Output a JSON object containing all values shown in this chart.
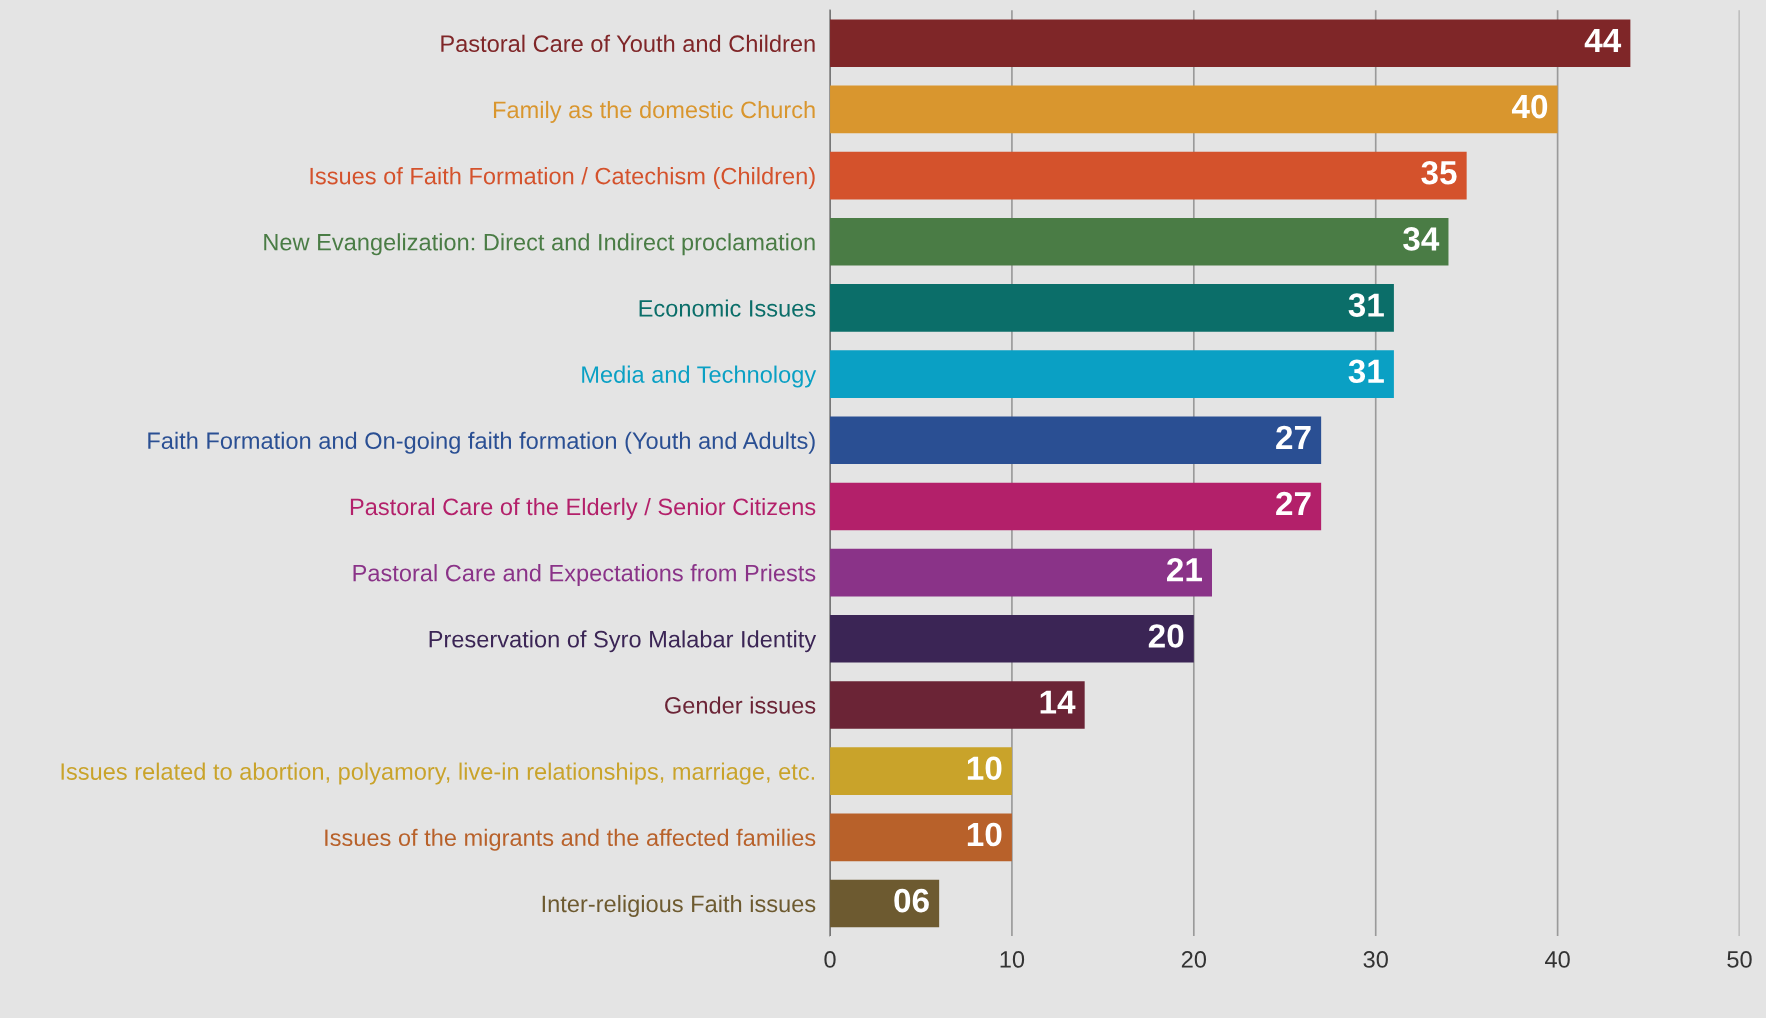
{
  "chart_data": {
    "type": "bar",
    "orientation": "horizontal",
    "categories": [
      "Pastoral Care of Youth and Children",
      "Family as the domestic Church",
      "Issues of Faith Formation / Catechism (Children)",
      "New Evangelization: Direct and Indirect proclamation",
      "Economic Issues",
      "Media and Technology",
      "Faith Formation and On-going faith formation (Youth and Adults)",
      "Pastoral Care of the Elderly / Senior Citizens",
      "Pastoral Care and Expectations from Priests",
      "Preservation of Syro Malabar Identity",
      "Gender issues",
      "Issues related to abortion, polyamory, live-in relationships, marriage, etc.",
      "Issues of the migrants and the affected families",
      "Inter-religious Faith issues"
    ],
    "values": [
      44,
      40,
      35,
      34,
      31,
      31,
      27,
      27,
      21,
      20,
      14,
      10,
      10,
      6
    ],
    "value_labels": [
      "44",
      "40",
      "35",
      "34",
      "31",
      "31",
      "27",
      "27",
      "21",
      "20",
      "14",
      "10",
      "10",
      "06"
    ],
    "colors": [
      "#7f2628",
      "#d9962e",
      "#d4522c",
      "#4a7c45",
      "#0b6e69",
      "#0aa0c4",
      "#2a4f93",
      "#b3206a",
      "#8a3388",
      "#3b2555",
      "#6b2436",
      "#c9a32a",
      "#b8612a",
      "#6d5a30"
    ],
    "xlim": [
      0,
      50
    ],
    "xticks": [
      0,
      10,
      20,
      30,
      40,
      50
    ],
    "grid": "x"
  }
}
